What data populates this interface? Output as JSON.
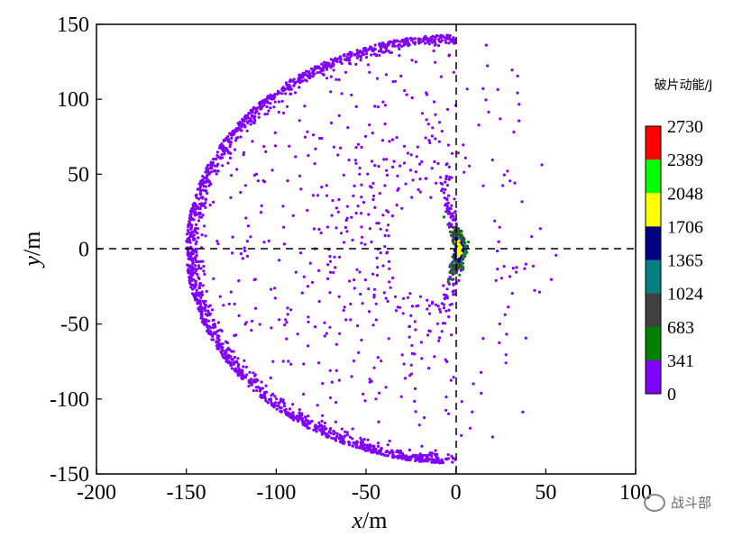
{
  "chart_data": {
    "type": "scatter",
    "title": "",
    "xlabel": "x",
    "xunit": "/m",
    "ylabel": "y",
    "yunit": "/m",
    "xlim": [
      -200,
      100
    ],
    "ylim": [
      -150,
      150
    ],
    "xticks": [
      "-200",
      "-150",
      "-100",
      "-50",
      "0",
      "50",
      "100"
    ],
    "yticks": [
      "150",
      "100",
      "50",
      "0",
      "-50",
      "-100",
      "-150"
    ],
    "grid": false,
    "reference_lines": {
      "x": 0,
      "y": 0,
      "style": "dashed"
    },
    "colorbar": {
      "title": "破片动能/J",
      "ticks": [
        "2730",
        "2389",
        "2048",
        "1706",
        "1365",
        "1024",
        "683",
        "341",
        "0"
      ],
      "colors": [
        "#ff0000",
        "#00ff00",
        "#ffff00",
        "#000080",
        "#008080",
        "#404040",
        "#008000",
        "#8000ff"
      ]
    },
    "distribution": {
      "outer_ring": {
        "center": [
          0,
          0
        ],
        "radius_x": 150,
        "radius_y": 143,
        "theta_start_deg": 90,
        "theta_end_deg": 270,
        "energy_range": [
          0,
          341
        ]
      },
      "outer_arc_right": {
        "center": [
          0,
          0
        ],
        "radius_x": 62,
        "radius_y": 143,
        "theta_start_deg": -90,
        "theta_end_deg": 90,
        "energy_range": [
          0,
          341
        ]
      },
      "core_cluster": {
        "center": [
          3,
          0
        ],
        "extent_x": [
          -10,
          18
        ],
        "extent_y": [
          -35,
          35
        ],
        "energy_range": [
          341,
          2048
        ]
      }
    }
  },
  "watermark": {
    "text": "战斗部"
  }
}
